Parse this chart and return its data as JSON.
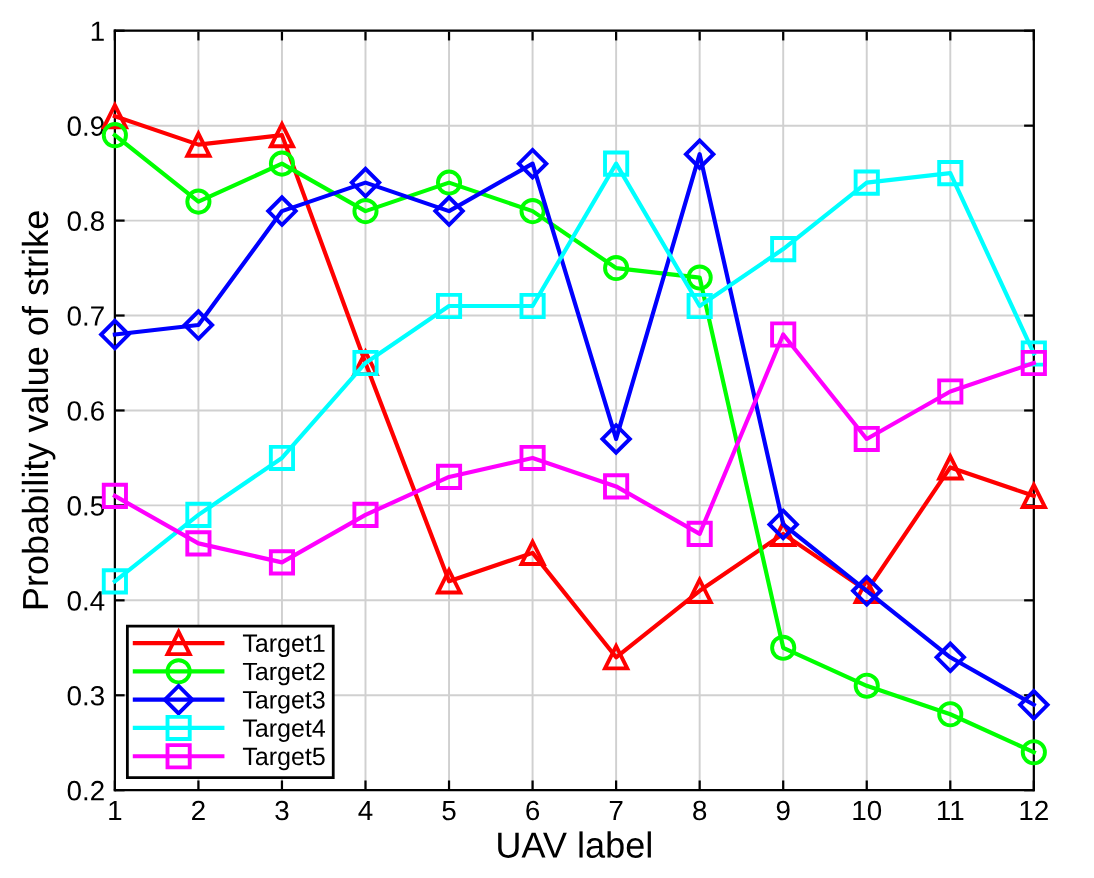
{
  "chart_data": {
    "type": "line",
    "xlabel": "UAV label",
    "ylabel": "Probability value of strike",
    "x": [
      1,
      2,
      3,
      4,
      5,
      6,
      7,
      8,
      9,
      10,
      11,
      12
    ],
    "xlim": [
      1,
      12
    ],
    "xticks": [
      1,
      2,
      3,
      4,
      5,
      6,
      7,
      8,
      9,
      10,
      11,
      12
    ],
    "ylim": [
      0.2,
      1
    ],
    "yticks": [
      0.2,
      0.3,
      0.4,
      0.5,
      0.6,
      0.7,
      0.8,
      0.9,
      1
    ],
    "grid": true,
    "legend": "bottom left",
    "line_style": "solid",
    "series": [
      {
        "name": "Target1",
        "color": "#ff0000",
        "marker": "triangle",
        "values": [
          0.91,
          0.88,
          0.89,
          0.65,
          0.42,
          0.45,
          0.34,
          0.41,
          0.47,
          0.41,
          0.54,
          0.51
        ]
      },
      {
        "name": "Target2",
        "color": "#00ff00",
        "marker": "circle",
        "values": [
          0.89,
          0.82,
          0.86,
          0.81,
          0.84,
          0.81,
          0.75,
          0.74,
          0.35,
          0.31,
          0.28,
          0.24
        ]
      },
      {
        "name": "Target3",
        "color": "#0000ff",
        "marker": "diamond",
        "values": [
          0.68,
          0.69,
          0.81,
          0.84,
          0.81,
          0.86,
          0.57,
          0.87,
          0.48,
          0.41,
          0.34,
          0.29
        ]
      },
      {
        "name": "Target4",
        "color": "#00ffff",
        "marker": "square",
        "values": [
          0.42,
          0.49,
          0.55,
          0.65,
          0.71,
          0.71,
          0.86,
          0.71,
          0.77,
          0.84,
          0.85,
          0.66
        ]
      },
      {
        "name": "Target5",
        "color": "#ff00ff",
        "marker": "square",
        "values": [
          0.51,
          0.46,
          0.44,
          0.49,
          0.53,
          0.55,
          0.52,
          0.47,
          0.68,
          0.57,
          0.62,
          0.65
        ]
      }
    ]
  }
}
